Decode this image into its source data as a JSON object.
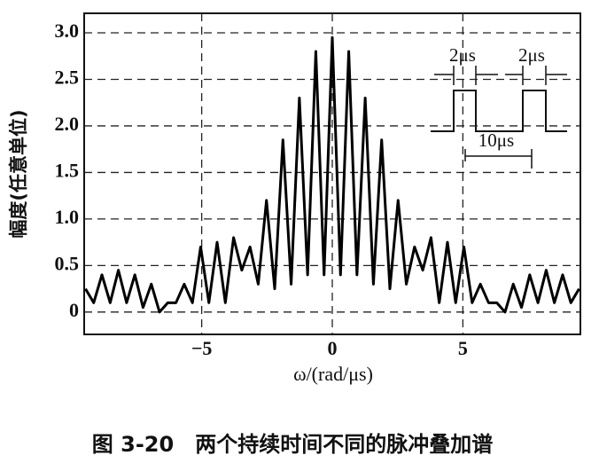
{
  "chart_data": {
    "type": "line",
    "ylabel": "幅度(任意单位)",
    "xlabel": "ω/(rad/μs)",
    "annotations": [
      "2μs",
      "2μs",
      "10μs"
    ],
    "x": [
      -9.45,
      -9.135,
      -8.82,
      -8.505,
      -8.19,
      -7.875,
      -7.56,
      -7.245,
      -6.93,
      -6.615,
      -6.3,
      -5.985,
      -5.67,
      -5.355,
      -5.04,
      -4.725,
      -4.41,
      -4.095,
      -3.78,
      -3.465,
      -3.15,
      -2.835,
      -2.52,
      -2.205,
      -1.89,
      -1.575,
      -1.26,
      -0.945,
      -0.63,
      -0.315,
      0,
      0.315,
      0.63,
      0.945,
      1.26,
      1.575,
      1.89,
      2.205,
      2.52,
      2.835,
      3.15,
      3.465,
      3.78,
      4.095,
      4.41,
      4.725,
      5.04,
      5.355,
      5.67,
      5.985,
      6.3,
      6.615,
      6.93,
      7.245,
      7.56,
      7.875,
      8.19,
      8.505,
      8.82,
      9.135,
      9.45
    ],
    "values": [
      0.25,
      0.1,
      0.4,
      0.1,
      0.45,
      0.1,
      0.4,
      0.05,
      0.3,
      0.0,
      0.1,
      0.1,
      0.3,
      0.1,
      0.7,
      0.1,
      0.75,
      0.1,
      0.8,
      0.45,
      0.7,
      0.3,
      1.2,
      0.25,
      1.85,
      0.3,
      2.3,
      0.4,
      2.8,
      0.4,
      2.95,
      0.4,
      2.8,
      0.4,
      2.3,
      0.3,
      1.85,
      0.25,
      1.2,
      0.3,
      0.7,
      0.45,
      0.8,
      0.1,
      0.75,
      0.1,
      0.7,
      0.1,
      0.3,
      0.1,
      0.1,
      0.0,
      0.3,
      0.05,
      0.4,
      0.1,
      0.45,
      0.1,
      0.4,
      0.1,
      0.25
    ],
    "color": "#000000",
    "xlim": [
      -9.5,
      9.5
    ],
    "ylim": [
      -0.24,
      3.21
    ],
    "xticks": [
      {
        "value": -5,
        "label": "−5"
      },
      0,
      5
    ],
    "yticks": [
      0,
      0.5,
      {
        "value": 1,
        "label": "1.0"
      },
      1.5,
      {
        "value": 2,
        "label": "2.0"
      },
      2.5,
      {
        "value": 3,
        "label": "3.0"
      }
    ],
    "grid": true
  },
  "caption": "图 3-20　两个持续时间不同的脉冲叠加谱"
}
